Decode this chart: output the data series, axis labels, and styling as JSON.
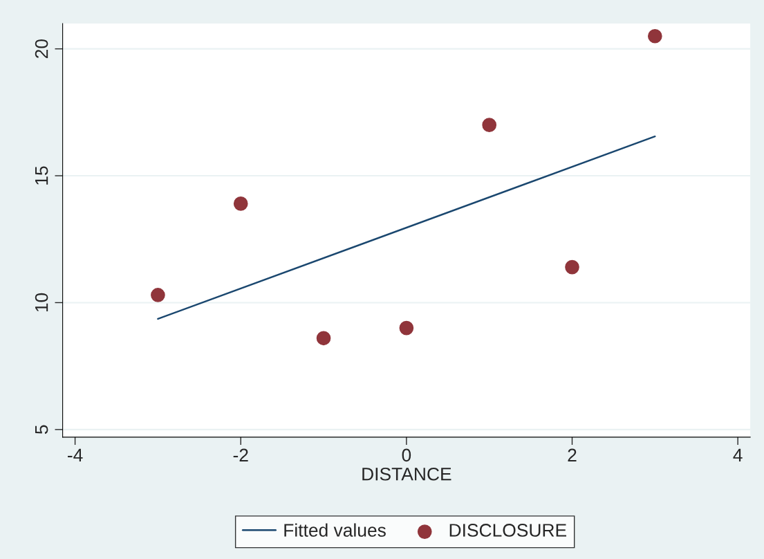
{
  "chart_data": {
    "type": "scatter",
    "xlabel": "DISTANCE",
    "x": [
      -3,
      -2,
      -1,
      0,
      1,
      2,
      3
    ],
    "series": [
      {
        "name": "Fitted values",
        "type": "line",
        "color": "#1a476f",
        "x": [
          -3,
          3
        ],
        "values": [
          9.36,
          16.55
        ],
        "marker": "none"
      },
      {
        "name": "DISCLOSURE",
        "type": "scatter",
        "color": "#90353b",
        "values": [
          10.3,
          13.9,
          8.6,
          9.0,
          17.0,
          11.4,
          20.5
        ],
        "marker": "circle"
      }
    ],
    "xlim": [
      -4.15,
      4.15
    ],
    "ylim": [
      4.7,
      21.0
    ],
    "xticks": [
      -4,
      -2,
      0,
      2,
      4
    ],
    "yticks": [
      5,
      10,
      15,
      20
    ],
    "grid": "y",
    "legend": "bottom"
  }
}
